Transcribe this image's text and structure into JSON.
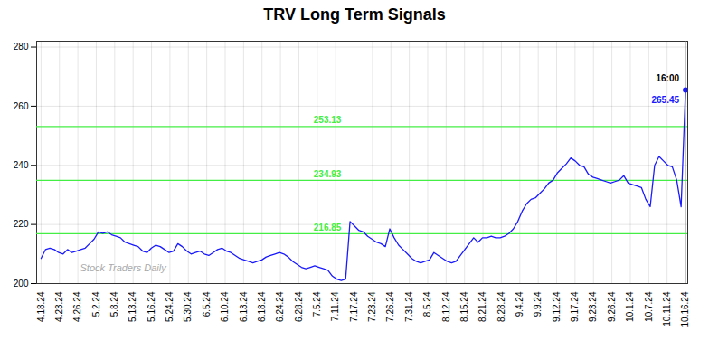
{
  "chart_data": {
    "type": "line",
    "title": "TRV Long Term Signals",
    "color": "#1a1aff",
    "x": [
      0,
      1,
      2,
      3,
      4,
      5,
      6,
      7,
      8,
      9,
      10,
      11,
      12,
      13,
      14,
      15,
      16,
      17,
      18,
      19,
      20,
      21,
      22,
      23,
      24,
      25,
      26,
      27,
      28,
      29,
      30,
      31,
      32,
      33,
      34,
      35,
      36,
      37,
      38,
      39,
      40,
      41,
      42,
      43,
      44,
      45,
      46,
      47,
      48,
      49,
      50,
      51,
      52,
      53,
      54,
      55,
      56,
      57,
      58,
      59,
      60,
      61,
      62,
      63,
      64,
      65,
      66,
      67,
      68,
      69,
      70,
      71,
      72,
      73,
      74,
      75,
      76,
      77,
      78,
      79,
      80,
      81,
      82,
      83,
      84,
      85,
      86,
      87,
      88,
      89,
      90,
      91,
      92,
      93,
      94,
      95,
      96,
      97,
      98,
      99,
      100,
      101,
      102,
      103,
      104,
      105,
      106,
      107,
      108,
      109,
      110,
      111,
      112,
      113,
      114,
      115,
      116,
      117,
      118,
      119,
      120,
      121,
      122,
      123,
      124,
      125,
      126,
      127,
      128,
      129,
      130,
      131,
      132,
      133,
      134,
      135,
      136,
      137,
      138,
      139,
      140,
      141,
      142,
      143,
      144,
      145,
      146
    ],
    "values": [
      208.5,
      211.5,
      212.0,
      211.5,
      210.5,
      210.0,
      211.5,
      210.5,
      211.0,
      211.5,
      212.0,
      213.5,
      215.0,
      217.5,
      217.0,
      217.5,
      216.5,
      216.0,
      215.5,
      214.0,
      213.5,
      213.0,
      212.5,
      211.0,
      210.5,
      212.0,
      213.0,
      212.5,
      211.5,
      210.5,
      211.0,
      213.5,
      212.5,
      211.0,
      210.0,
      210.5,
      211.0,
      210.0,
      209.5,
      210.5,
      211.5,
      212.0,
      211.0,
      210.5,
      209.5,
      208.5,
      208.0,
      207.5,
      207.0,
      207.5,
      208.0,
      209.0,
      209.5,
      210.0,
      210.5,
      210.0,
      209.0,
      207.5,
      206.5,
      205.5,
      205.0,
      205.5,
      206.0,
      205.5,
      205.0,
      204.5,
      202.5,
      201.5,
      201.0,
      201.5,
      221.0,
      219.5,
      218.0,
      217.5,
      216.0,
      215.0,
      214.0,
      213.5,
      212.5,
      218.5,
      215.5,
      213.0,
      211.5,
      210.0,
      208.5,
      207.5,
      207.0,
      207.5,
      208.0,
      210.5,
      209.5,
      208.5,
      207.5,
      207.0,
      207.5,
      209.5,
      211.5,
      213.5,
      215.5,
      214.0,
      215.5,
      215.5,
      216.0,
      215.5,
      215.5,
      216.0,
      217.0,
      218.5,
      221.0,
      224.5,
      227.0,
      228.5,
      229.0,
      230.5,
      232.0,
      234.0,
      235.0,
      237.5,
      239.0,
      240.5,
      242.5,
      241.5,
      240.0,
      239.5,
      237.0,
      236.0,
      235.5,
      235.0,
      234.5,
      234.0,
      234.5,
      235.0,
      236.5,
      234.0,
      233.5,
      233.0,
      232.5,
      228.5,
      226.0,
      240.0,
      243.0,
      241.5,
      240.0,
      239.5,
      235.0,
      226.0,
      265.5
    ],
    "xlim": [
      -1,
      146.5
    ],
    "xticks": [
      {
        "value": 0,
        "label": "4.18.24"
      },
      {
        "value": 4.171428571428571,
        "label": "4.23.24"
      },
      {
        "value": 8.342857142857143,
        "label": "4.26.24"
      },
      {
        "value": 12.514285714285714,
        "label": "5.2.24"
      },
      {
        "value": 16.685714285714283,
        "label": "5.8.24"
      },
      {
        "value": 20.857142857142858,
        "label": "5.13.24"
      },
      {
        "value": 25.02857142857143,
        "label": "5.16.24"
      },
      {
        "value": 29.2,
        "label": "5.24.24"
      },
      {
        "value": 33.371428571428574,
        "label": "5.30.24"
      },
      {
        "value": 37.542857142857144,
        "label": "6.5.24"
      },
      {
        "value": 41.714285714285715,
        "label": "6.10.24"
      },
      {
        "value": 45.885714285714286,
        "label": "6.13.24"
      },
      {
        "value": 50.05714285714286,
        "label": "6.18.24"
      },
      {
        "value": 54.22857142857143,
        "label": "6.24.24"
      },
      {
        "value": 58.4,
        "label": "6.28.24"
      },
      {
        "value": 62.57142857142857,
        "label": "7.5.24"
      },
      {
        "value": 66.74285714285713,
        "label": "7.11.24"
      },
      {
        "value": 70.91428571428571,
        "label": "7.17.24"
      },
      {
        "value": 75.08571428571429,
        "label": "7.23.24"
      },
      {
        "value": 79.25714285714285,
        "label": "7.26.24"
      },
      {
        "value": 83.42857142857143,
        "label": "7.31.24"
      },
      {
        "value": 87.6,
        "label": "8.5.24"
      },
      {
        "value": 91.77142857142859,
        "label": "8.12.24"
      },
      {
        "value": 95.94285714285714,
        "label": "8.15.24"
      },
      {
        "value": 100.11428571428571,
        "label": "8.21.24"
      },
      {
        "value": 104.28571428571429,
        "label": "8.28.24"
      },
      {
        "value": 108.45714285714286,
        "label": "9.4.24"
      },
      {
        "value": 112.62857142857143,
        "label": "9.9.24"
      },
      {
        "value": 116.8,
        "label": "9.12.24"
      },
      {
        "value": 120.97142857142858,
        "label": "9.17.24"
      },
      {
        "value": 125.14285714285714,
        "label": "9.23.24"
      },
      {
        "value": 129.31428571428572,
        "label": "9.26.24"
      },
      {
        "value": 133.4857142857143,
        "label": "10.1.24"
      },
      {
        "value": 137.65714285714287,
        "label": "10.7.24"
      },
      {
        "value": 141.82857142857142,
        "label": "10.11.24"
      },
      {
        "value": 146,
        "label": "10.16.24"
      }
    ],
    "ylim": [
      200,
      282
    ],
    "yticks": [
      200,
      220,
      240,
      260,
      280
    ],
    "grid": true,
    "reference_lines": [
      {
        "value": 216.85,
        "label": "216.85",
        "color": "#44ee44"
      },
      {
        "value": 234.93,
        "label": "234.93",
        "color": "#44ee44"
      },
      {
        "value": 253.13,
        "label": "253.13",
        "color": "#44ee44"
      }
    ],
    "annotations": [
      {
        "text": "16:00",
        "color": "#000000"
      },
      {
        "text": "265.45",
        "color": "#1a1aff"
      },
      {
        "text": "Stock Traders Daily",
        "color": "#aaaaaa"
      }
    ]
  }
}
